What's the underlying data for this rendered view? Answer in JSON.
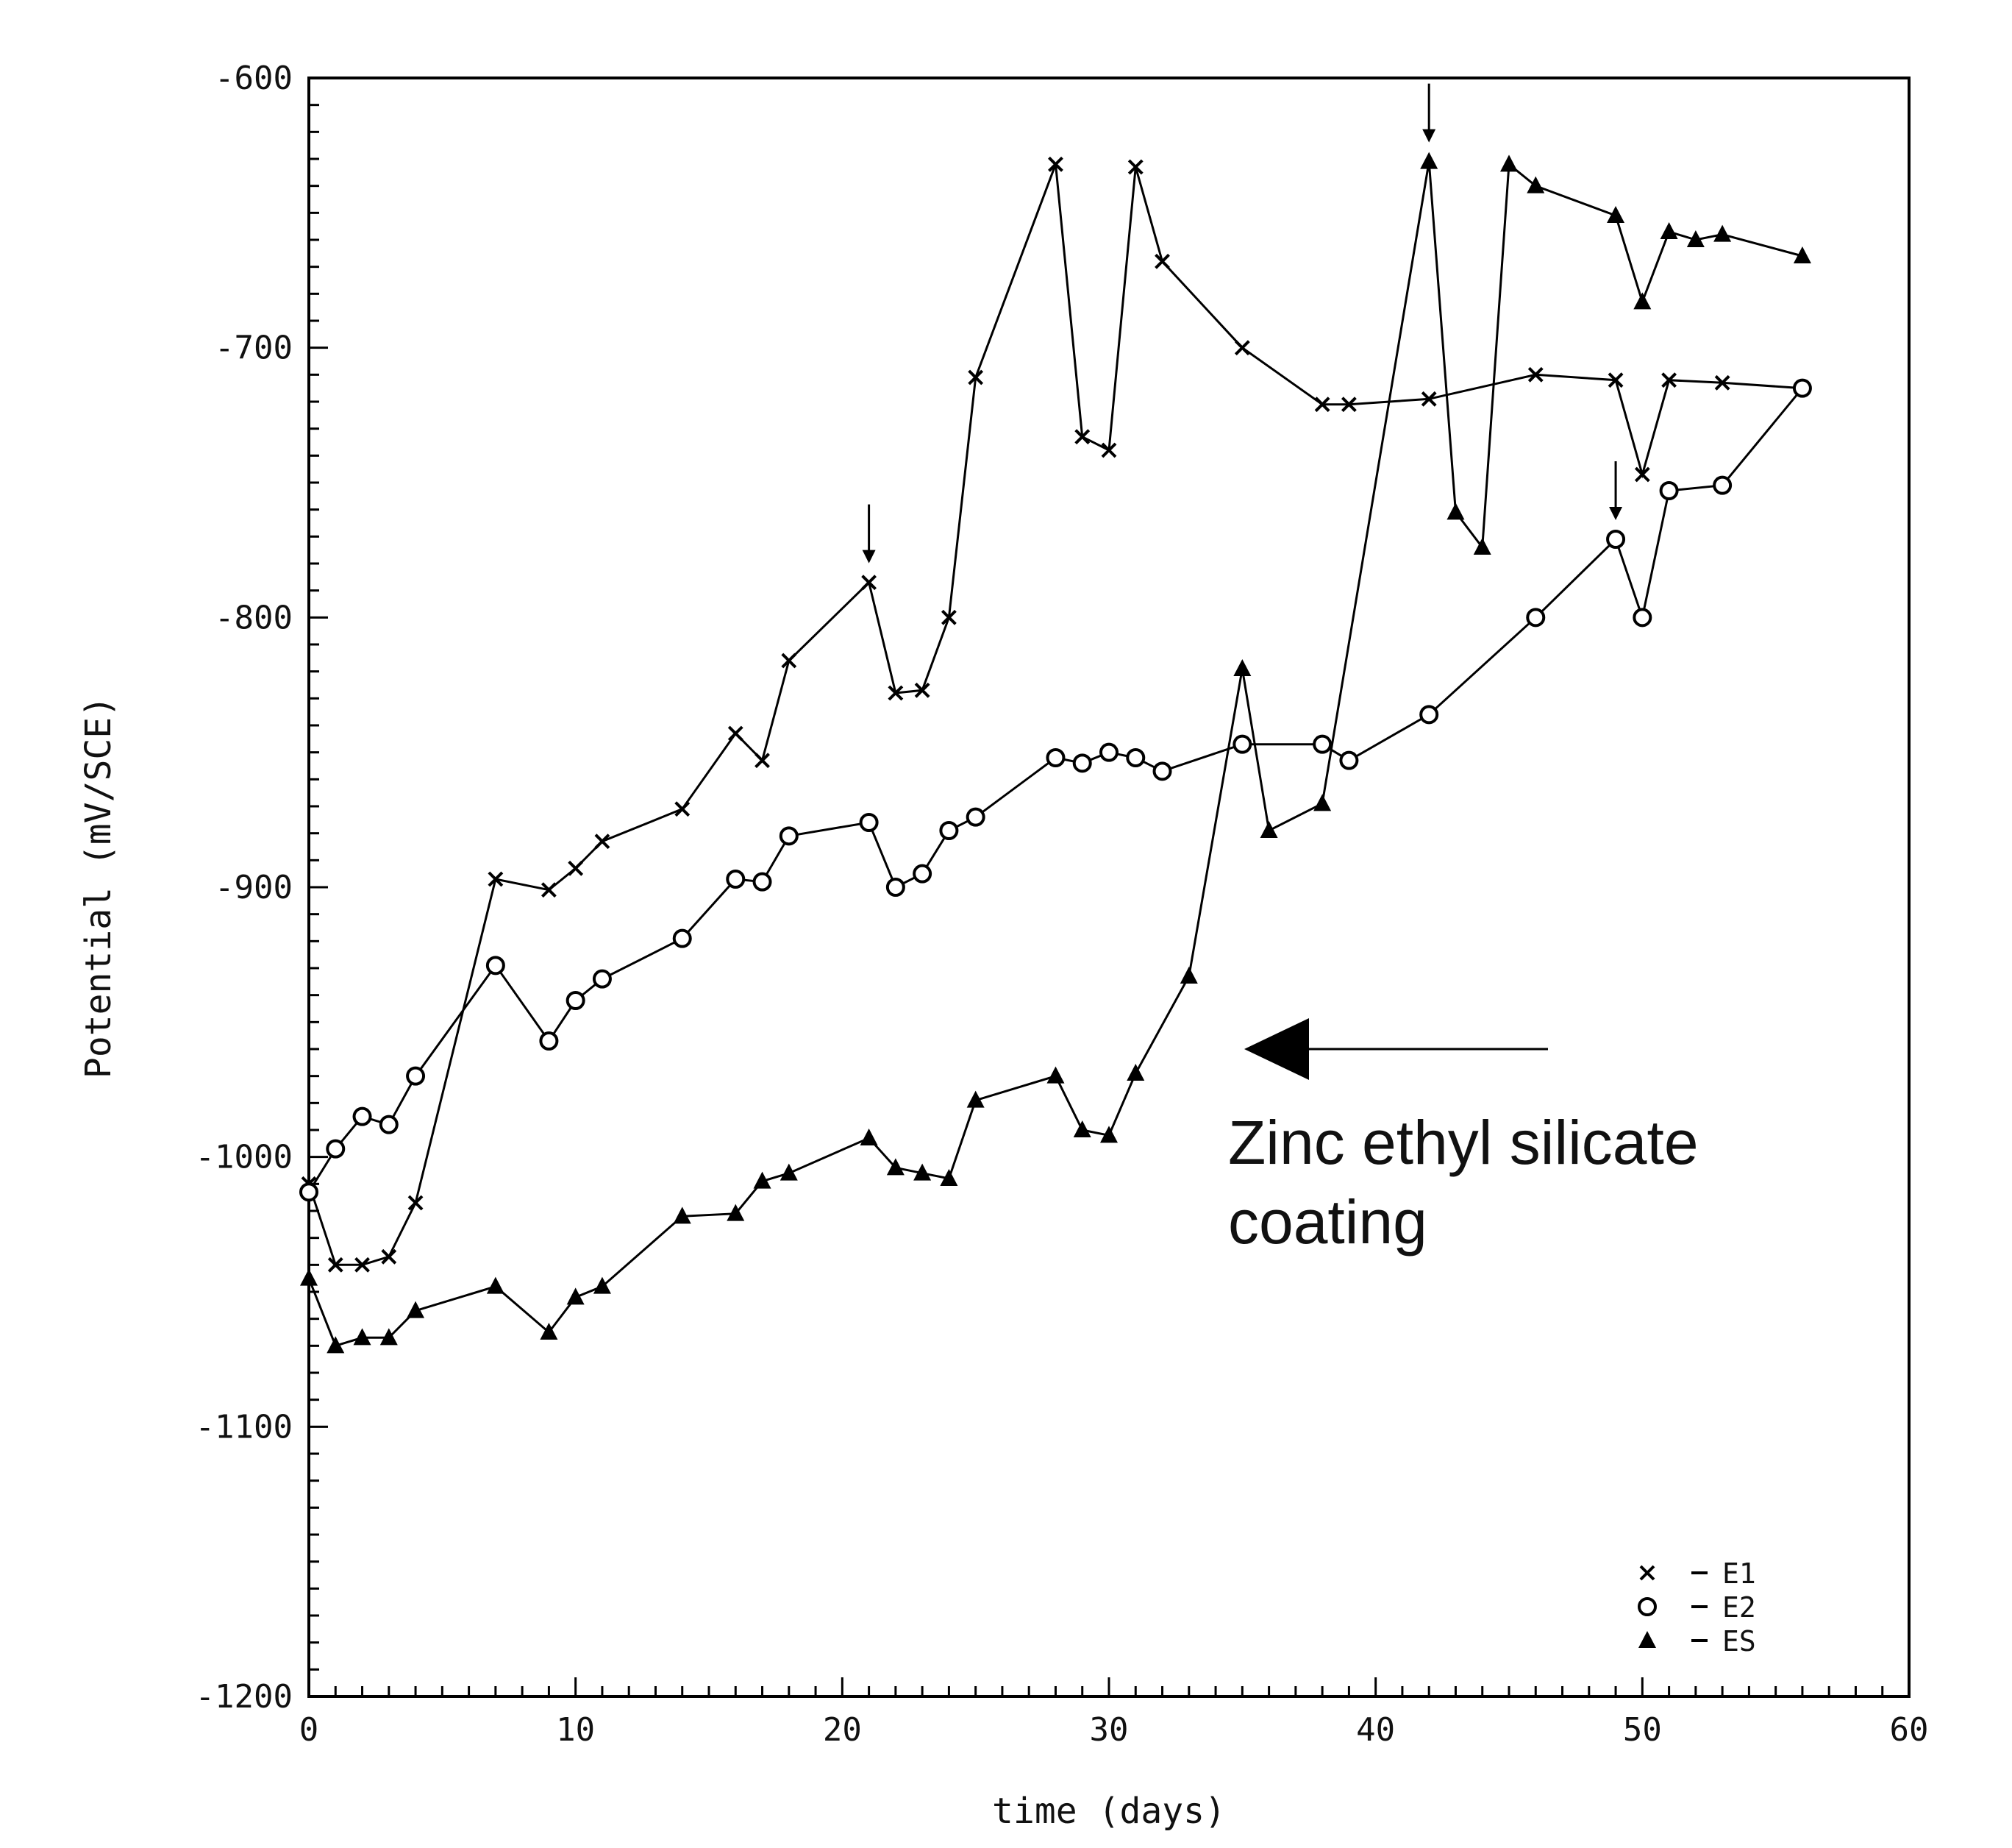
{
  "chart_data": {
    "type": "line",
    "title": "",
    "xlabel": "time (days)",
    "ylabel": "Potential (mV/SCE)",
    "xlim": [
      0,
      60
    ],
    "ylim": [
      -1200,
      -600
    ],
    "x_ticks": [
      0,
      10,
      20,
      30,
      40,
      50,
      60
    ],
    "y_ticks": [
      -600,
      -700,
      -800,
      -900,
      -1000,
      -1100,
      -1200
    ],
    "x_tick_labels": [
      "0",
      "10",
      "20",
      "30",
      "40",
      "50",
      "60"
    ],
    "y_tick_labels": [
      "-600",
      "-700",
      "-800",
      "-900",
      "-1000",
      "-1100",
      "-1200"
    ],
    "grid": false,
    "legend_position": "bottom-right",
    "series": [
      {
        "name": "E1",
        "marker": "x",
        "x": [
          0,
          1,
          2,
          3,
          4,
          7,
          9,
          10,
          11,
          14,
          16,
          17,
          18,
          21,
          22,
          23,
          24,
          25,
          28,
          29,
          30,
          31,
          32,
          35,
          38,
          39,
          42,
          46,
          49,
          50,
          51,
          53,
          56
        ],
        "y": [
          -1010,
          -1040,
          -1040,
          -1037,
          -1017,
          -897,
          -901,
          -893,
          -883,
          -871,
          -843,
          -853,
          -816,
          -787,
          -828,
          -827,
          -800,
          -711,
          -632,
          -733,
          -738,
          -633,
          -668,
          -700,
          -721,
          -721,
          -719,
          -710,
          -712,
          -747,
          -712,
          -713,
          -715
        ]
      },
      {
        "name": "E2",
        "marker": "o",
        "x": [
          0,
          1,
          2,
          3,
          4,
          7,
          9,
          10,
          11,
          14,
          16,
          17,
          18,
          21,
          22,
          23,
          24,
          25,
          28,
          29,
          30,
          31,
          32,
          35,
          38,
          39,
          42,
          46,
          49,
          50,
          51,
          53,
          56
        ],
        "y": [
          -1013,
          -997,
          -985,
          -988,
          -970,
          -929,
          -957,
          -942,
          -934,
          -919,
          -897,
          -898,
          -881,
          -876,
          -900,
          -895,
          -879,
          -874,
          -852,
          -854,
          -850,
          -852,
          -857,
          -847,
          -847,
          -853,
          -836,
          -800,
          -771,
          -800,
          -753,
          -751,
          -715
        ]
      },
      {
        "name": "ES",
        "marker": "triangle",
        "x": [
          0,
          1,
          2,
          3,
          4,
          7,
          9,
          10,
          11,
          14,
          16,
          17,
          18,
          21,
          22,
          23,
          24,
          25,
          28,
          29,
          30,
          31,
          33,
          35,
          36,
          38,
          42,
          43,
          44,
          45,
          46,
          49,
          50,
          51,
          52,
          53,
          56
        ],
        "y": [
          -1045,
          -1070,
          -1067,
          -1067,
          -1057,
          -1048,
          -1065,
          -1052,
          -1048,
          -1022,
          -1021,
          -1009,
          -1006,
          -993,
          -1004,
          -1006,
          -1008,
          -979,
          -970,
          -990,
          -992,
          -969,
          -933,
          -819,
          -879,
          -869,
          -631,
          -761,
          -774,
          -632,
          -640,
          -651,
          -683,
          -657,
          -660,
          -658,
          -666
        ]
      }
    ],
    "arrows_at_x": [
      21,
      42,
      49
    ],
    "annotation": {
      "line1": "Zinc ethyl silicate",
      "line2": "coating"
    }
  }
}
